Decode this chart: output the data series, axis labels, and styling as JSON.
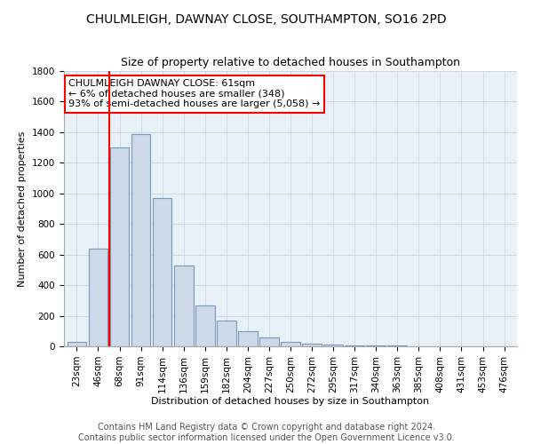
{
  "title": "CHULMLEIGH, DAWNAY CLOSE, SOUTHAMPTON, SO16 2PD",
  "subtitle": "Size of property relative to detached houses in Southampton",
  "xlabel": "Distribution of detached houses by size in Southampton",
  "ylabel": "Number of detached properties",
  "categories": [
    "23sqm",
    "46sqm",
    "68sqm",
    "91sqm",
    "114sqm",
    "136sqm",
    "159sqm",
    "182sqm",
    "204sqm",
    "227sqm",
    "250sqm",
    "272sqm",
    "295sqm",
    "317sqm",
    "340sqm",
    "363sqm",
    "385sqm",
    "408sqm",
    "431sqm",
    "453sqm",
    "476sqm"
  ],
  "values": [
    30,
    640,
    1300,
    1390,
    970,
    530,
    270,
    170,
    100,
    60,
    30,
    20,
    10,
    8,
    5,
    3,
    2,
    1,
    1,
    0,
    0
  ],
  "bar_color": "#cdd9e8",
  "bar_edge_color": "#7799bb",
  "property_line_x": 1.5,
  "ylim": [
    0,
    1800
  ],
  "yticks": [
    0,
    200,
    400,
    600,
    800,
    1000,
    1200,
    1400,
    1600,
    1800
  ],
  "annotation_line1": "CHULMLEIGH DAWNAY CLOSE: 61sqm",
  "annotation_line2": "← 6% of detached houses are smaller (348)",
  "annotation_line3": "93% of semi-detached houses are larger (5,058) →",
  "footer_line1": "Contains HM Land Registry data © Crown copyright and database right 2024.",
  "footer_line2": "Contains public sector information licensed under the Open Government Licence v3.0.",
  "title_fontsize": 10,
  "subtitle_fontsize": 9,
  "axis_label_fontsize": 8,
  "tick_fontsize": 7.5,
  "annotation_fontsize": 8,
  "footer_fontsize": 7
}
